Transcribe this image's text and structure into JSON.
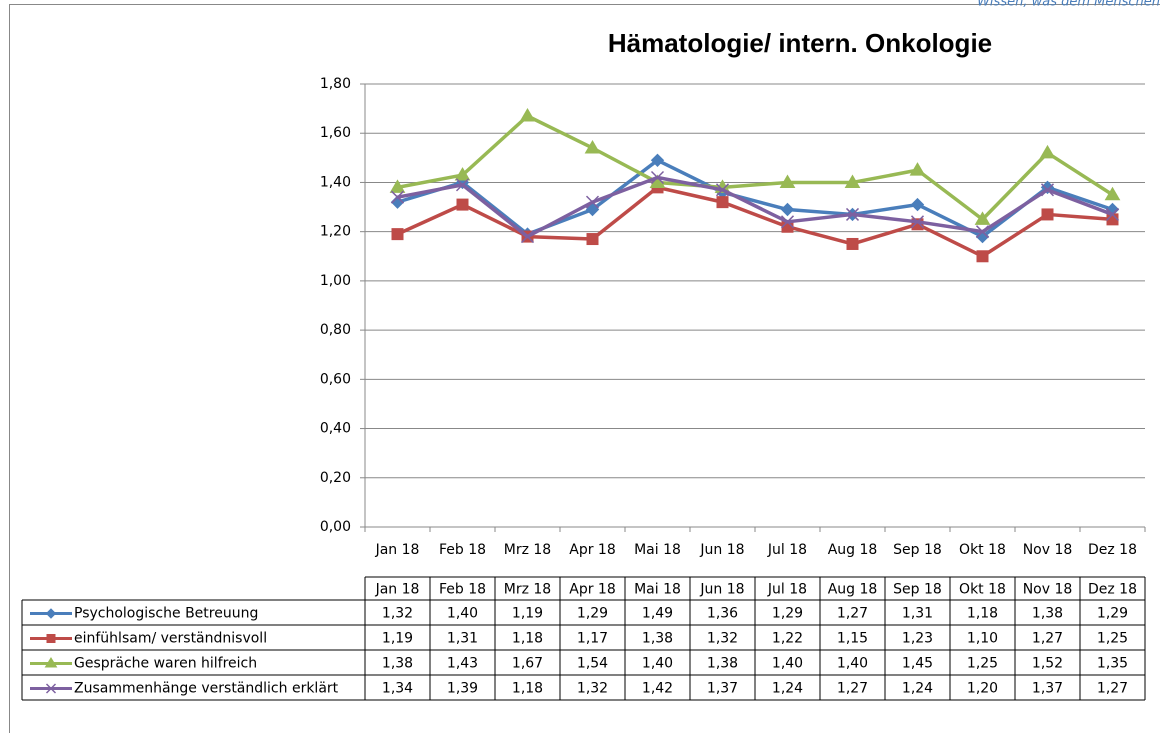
{
  "header": {
    "tagline": "Wissen, was dem Menschen"
  },
  "chart_data": {
    "type": "line",
    "title": "Hämatologie/ intern. Onkologie",
    "categories": [
      "Jan 18",
      "Feb 18",
      "Mrz 18",
      "Apr 18",
      "Mai 18",
      "Jun 18",
      "Jul 18",
      "Aug 18",
      "Sep 18",
      "Okt 18",
      "Nov 18",
      "Dez 18"
    ],
    "ylim": [
      0,
      1.8
    ],
    "yticks": [
      {
        "value": 0,
        "label": "0,00"
      },
      {
        "value": 0.2,
        "label": "0,20"
      },
      {
        "value": 0.4,
        "label": "0,40"
      },
      {
        "value": 0.6,
        "label": "0,60"
      },
      {
        "value": 0.8,
        "label": "0,80"
      },
      {
        "value": 1,
        "label": "1,00"
      },
      {
        "value": 1.2,
        "label": "1,20"
      },
      {
        "value": 1.4,
        "label": "1,40"
      },
      {
        "value": 1.6,
        "label": "1,60"
      },
      {
        "value": 1.8,
        "label": "1,80"
      }
    ],
    "grid": true,
    "series": [
      {
        "name": "Psychologische  Betreuung",
        "color": "#4a7ebb",
        "marker": "diamond",
        "values": [
          1.32,
          1.4,
          1.19,
          1.29,
          1.49,
          1.36,
          1.29,
          1.27,
          1.31,
          1.18,
          1.38,
          1.29
        ],
        "value_labels": [
          "1,32",
          "1,40",
          "1,19",
          "1,29",
          "1,49",
          "1,36",
          "1,29",
          "1,27",
          "1,31",
          "1,18",
          "1,38",
          "1,29"
        ]
      },
      {
        "name": "einfühlsam/ verständnisvoll",
        "color": "#be4b48",
        "marker": "square",
        "values": [
          1.19,
          1.31,
          1.18,
          1.17,
          1.38,
          1.32,
          1.22,
          1.15,
          1.23,
          1.1,
          1.27,
          1.25
        ],
        "value_labels": [
          "1,19",
          "1,31",
          "1,18",
          "1,17",
          "1,38",
          "1,32",
          "1,22",
          "1,15",
          "1,23",
          "1,10",
          "1,27",
          "1,25"
        ]
      },
      {
        "name": "Gespräche waren hilfreich",
        "color": "#98b954",
        "marker": "triangle",
        "values": [
          1.38,
          1.43,
          1.67,
          1.54,
          1.4,
          1.38,
          1.4,
          1.4,
          1.45,
          1.25,
          1.52,
          1.35
        ],
        "value_labels": [
          "1,38",
          "1,43",
          "1,67",
          "1,54",
          "1,40",
          "1,38",
          "1,40",
          "1,40",
          "1,45",
          "1,25",
          "1,52",
          "1,35"
        ]
      },
      {
        "name": "Zusammenhänge verständlich erklärt",
        "color": "#7d60a0",
        "marker": "x",
        "values": [
          1.34,
          1.39,
          1.18,
          1.32,
          1.42,
          1.37,
          1.24,
          1.27,
          1.24,
          1.2,
          1.37,
          1.27
        ],
        "value_labels": [
          "1,34",
          "1,39",
          "1,18",
          "1,32",
          "1,42",
          "1,37",
          "1,24",
          "1,27",
          "1,24",
          "1,20",
          "1,37",
          "1,27"
        ]
      }
    ]
  }
}
